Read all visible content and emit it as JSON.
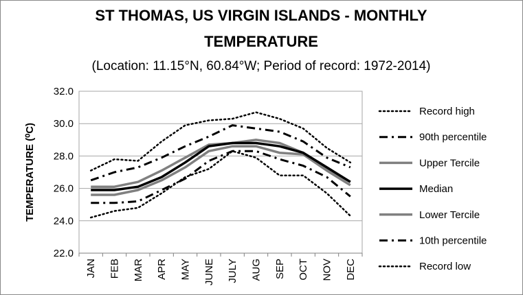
{
  "chart_data": {
    "type": "line",
    "title_line1": "ST THOMAS, US VIRGIN ISLANDS - MONTHLY",
    "title_line2": "TEMPERATURE",
    "subtitle": "(Location: 11.15°N, 60.84°W; Period of record: 1972-2014)",
    "ylabel": "TEMPERATURE (⁰C)",
    "xlabel": "",
    "ylim": [
      22.0,
      32.0
    ],
    "yticks": [
      "22.0",
      "24.0",
      "26.0",
      "28.0",
      "30.0",
      "32.0"
    ],
    "grid": true,
    "legend_position": "right",
    "categories": [
      "JAN",
      "FEB",
      "MAR",
      "APR",
      "MAY",
      "JUNE",
      "JULY",
      "AUG",
      "SEP",
      "OCT",
      "NOV",
      "DEC"
    ],
    "series": [
      {
        "name": "Record high",
        "color": "#000000",
        "style": "dotted",
        "values": [
          27.1,
          27.8,
          27.7,
          28.9,
          29.9,
          30.2,
          30.3,
          30.7,
          30.3,
          29.7,
          28.5,
          27.6
        ]
      },
      {
        "name": "90th percentile",
        "color": "#000000",
        "style": "dashdot",
        "values": [
          26.5,
          27.0,
          27.3,
          27.9,
          28.6,
          29.2,
          29.9,
          29.7,
          29.5,
          28.9,
          27.9,
          27.3
        ]
      },
      {
        "name": "Upper Tercile",
        "color": "#808080",
        "style": "solid",
        "values": [
          26.1,
          26.1,
          26.4,
          27.1,
          27.9,
          28.7,
          28.8,
          29.0,
          28.8,
          28.2,
          27.2,
          26.4
        ]
      },
      {
        "name": "Median",
        "color": "#000000",
        "style": "solid",
        "values": [
          25.9,
          25.9,
          26.1,
          26.7,
          27.6,
          28.6,
          28.8,
          28.8,
          28.6,
          28.2,
          27.3,
          26.4
        ]
      },
      {
        "name": "Lower Tercile",
        "color": "#808080",
        "style": "solid",
        "values": [
          25.6,
          25.6,
          25.9,
          26.5,
          27.3,
          28.3,
          28.6,
          28.6,
          28.2,
          28.1,
          27.1,
          26.2
        ]
      },
      {
        "name": "10th percentile",
        "color": "#000000",
        "style": "dashdot",
        "values": [
          25.1,
          25.1,
          25.2,
          25.9,
          26.6,
          27.7,
          28.3,
          28.3,
          27.8,
          27.4,
          26.7,
          25.5
        ]
      },
      {
        "name": "Record low",
        "color": "#000000",
        "style": "dotted",
        "values": [
          24.2,
          24.6,
          24.8,
          25.7,
          26.7,
          27.2,
          28.3,
          27.9,
          26.8,
          26.8,
          25.7,
          24.3
        ]
      }
    ]
  }
}
